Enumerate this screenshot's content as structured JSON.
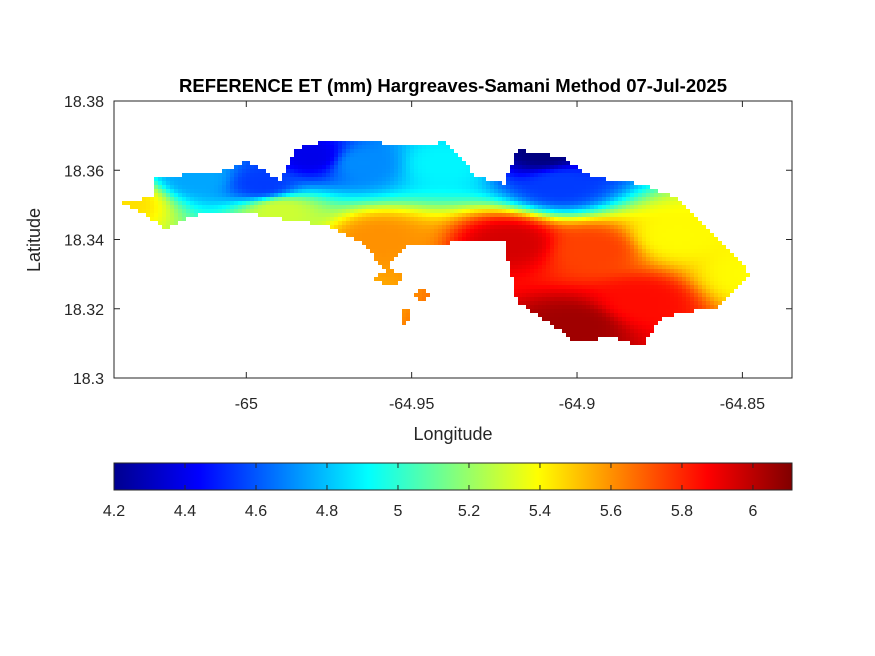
{
  "chart_data": {
    "type": "heatmap",
    "title": "REFERENCE ET (mm) Hargreaves-Samani Method  07-Jul-2025",
    "xlabel": "Longitude",
    "ylabel": "Latitude",
    "xlim": [
      -65.04,
      -64.835
    ],
    "ylim": [
      18.3,
      18.38
    ],
    "x_ticks": [
      -65,
      -64.95,
      -64.9,
      -64.85
    ],
    "x_tick_labels": [
      "-65",
      "-64.95",
      "-64.9",
      "-64.85"
    ],
    "y_ticks": [
      18.3,
      18.32,
      18.34,
      18.36,
      18.38
    ],
    "y_tick_labels": [
      "18.3",
      "18.32",
      "18.34",
      "18.36",
      "18.38"
    ],
    "colormap": "jet",
    "colorbar": {
      "location": "below",
      "range": [
        4.2,
        6.11
      ],
      "ticks": [
        4.2,
        4.4,
        4.6,
        4.8,
        5,
        5.2,
        5.4,
        5.6,
        5.8,
        6
      ],
      "tick_labels": [
        "4.2",
        "4.4",
        "4.6",
        "4.8",
        "5",
        "5.2",
        "5.4",
        "5.6",
        "5.8",
        "6"
      ]
    },
    "field": {
      "description_of_values": "reference ET in mm",
      "min": 4.2,
      "max": 6.1,
      "pattern_points": [
        {
          "lon": -65.037,
          "lat": 18.351,
          "value": 5.45
        },
        {
          "lon": -65.015,
          "lat": 18.358,
          "value": 4.75
        },
        {
          "lon": -64.995,
          "lat": 18.356,
          "value": 4.55
        },
        {
          "lon": -64.98,
          "lat": 18.364,
          "value": 4.4
        },
        {
          "lon": -64.965,
          "lat": 18.362,
          "value": 4.7
        },
        {
          "lon": -64.94,
          "lat": 18.362,
          "value": 4.9
        },
        {
          "lon": -64.91,
          "lat": 18.365,
          "value": 4.2
        },
        {
          "lon": -64.905,
          "lat": 18.356,
          "value": 4.55
        },
        {
          "lon": -64.96,
          "lat": 18.34,
          "value": 5.6
        },
        {
          "lon": -64.92,
          "lat": 18.339,
          "value": 5.95
        },
        {
          "lon": -64.895,
          "lat": 18.337,
          "value": 5.75
        },
        {
          "lon": -64.87,
          "lat": 18.341,
          "value": 5.4
        },
        {
          "lon": -64.848,
          "lat": 18.33,
          "value": 5.4
        },
        {
          "lon": -64.9,
          "lat": 18.315,
          "value": 6.05
        },
        {
          "lon": -64.88,
          "lat": 18.322,
          "value": 5.85
        },
        {
          "lon": -64.99,
          "lat": 18.348,
          "value": 5.3
        }
      ]
    }
  }
}
